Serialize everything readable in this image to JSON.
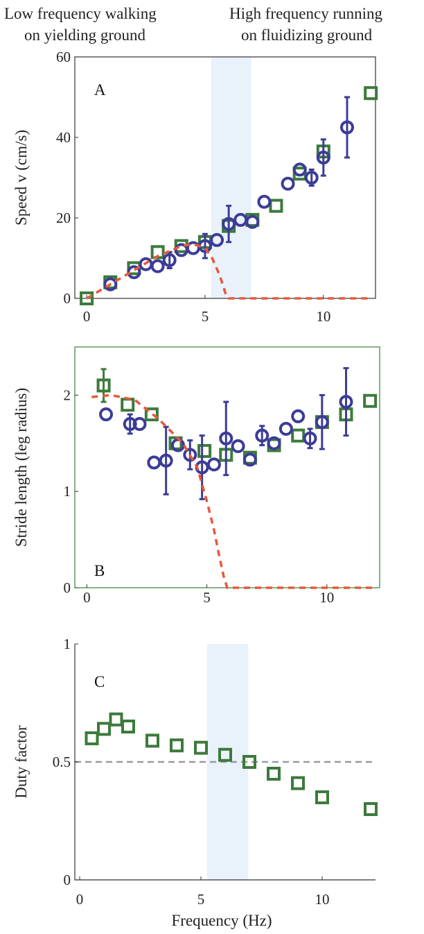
{
  "header": {
    "left_line1": "Low frequency walking",
    "left_line2": "on yielding ground",
    "right_line1": "High frequency running",
    "right_line2": "on fluidizing ground"
  },
  "xlabel": "Frequency (Hz)",
  "colors": {
    "square": "#3c7a3c",
    "circle": "#3c3c96",
    "model": "#e8583a",
    "band": "#e9f2fb",
    "refline": "#9a9a9a",
    "axis": "#333333"
  },
  "chart_data": [
    {
      "type": "scatter",
      "panel_label": "A",
      "ylabel": "Speed v (cm/s)",
      "xlim": [
        -0.5,
        12.2
      ],
      "ylim": [
        0,
        60
      ],
      "xticks": [
        "0",
        "5",
        "10"
      ],
      "yticks": [
        "0",
        "20",
        "40",
        "60"
      ],
      "shaded_band": [
        5.25,
        6.95
      ],
      "series": [
        {
          "marker": "square",
          "x": [
            0,
            1,
            2,
            3,
            4,
            5,
            6,
            7,
            8,
            9,
            10,
            12
          ],
          "y": [
            0,
            4,
            7.5,
            11.5,
            13,
            14,
            18,
            19.5,
            23,
            31,
            36.5,
            51
          ]
        },
        {
          "marker": "circle",
          "x": [
            1,
            2,
            2.5,
            3,
            3.5,
            4,
            4.5,
            5,
            5.5,
            6,
            6.5,
            7,
            7.5,
            8.5,
            9,
            9.5,
            10,
            11
          ],
          "y": [
            3.5,
            6.5,
            8.5,
            8,
            9.5,
            12,
            12.5,
            13,
            14.5,
            18.5,
            19.5,
            19,
            24,
            28.5,
            32,
            30,
            35,
            42.5
          ],
          "err": [
            0,
            0,
            0,
            0,
            2,
            0,
            0,
            3,
            0,
            4.5,
            0,
            0,
            0,
            0,
            0,
            2,
            4.5,
            7.5
          ]
        },
        {
          "marker": "dashed-line",
          "x": [
            0,
            1,
            2,
            3,
            4,
            4.5,
            5,
            5.3,
            5.6,
            5.8,
            5.9,
            6,
            12
          ],
          "y": [
            0,
            3.5,
            7,
            10.5,
            13,
            13.5,
            12.5,
            10,
            6,
            2.5,
            0.5,
            0,
            0
          ]
        }
      ]
    },
    {
      "type": "scatter",
      "panel_label": "B",
      "ylabel": "Stride length (leg radius)",
      "xlim": [
        -0.5,
        12.2
      ],
      "ylim": [
        0,
        2.5
      ],
      "xticks": [
        "0",
        "5",
        "10"
      ],
      "yticks": [
        "0",
        "1",
        "2"
      ],
      "series": [
        {
          "marker": "square",
          "x": [
            0.7,
            1.7,
            2.7,
            3.7,
            4.9,
            5.8,
            6.8,
            7.8,
            8.8,
            9.8,
            10.8,
            11.8
          ],
          "y": [
            2.1,
            1.9,
            1.8,
            1.5,
            1.42,
            1.38,
            1.35,
            1.48,
            1.58,
            1.72,
            1.8,
            1.94
          ],
          "err": [
            0.17,
            0,
            0,
            0,
            0,
            0,
            0,
            0,
            0,
            0,
            0,
            0
          ]
        },
        {
          "marker": "circle",
          "x": [
            0.8,
            1.8,
            2.2,
            2.8,
            3.3,
            3.8,
            4.3,
            4.8,
            5.3,
            5.8,
            6.3,
            6.8,
            7.3,
            7.8,
            8.3,
            8.8,
            9.3,
            9.8,
            10.8
          ],
          "y": [
            1.8,
            1.7,
            1.7,
            1.3,
            1.32,
            1.48,
            1.38,
            1.25,
            1.28,
            1.55,
            1.47,
            1.33,
            1.58,
            1.5,
            1.65,
            1.78,
            1.55,
            1.72,
            1.93
          ],
          "err": [
            0,
            0.1,
            0,
            0,
            0.35,
            0,
            0.15,
            0.33,
            0,
            0.38,
            0,
            0,
            0.1,
            0,
            0,
            0,
            0.1,
            0.28,
            0.35
          ]
        },
        {
          "marker": "dashed-line",
          "x": [
            0.2,
            1,
            2,
            3,
            4,
            4.6,
            5,
            5.3,
            5.5,
            5.7,
            5.85,
            12
          ],
          "y": [
            1.98,
            2.0,
            1.95,
            1.75,
            1.5,
            1.25,
            0.9,
            0.6,
            0.35,
            0.12,
            0,
            0
          ]
        }
      ]
    },
    {
      "type": "scatter",
      "panel_label": "C",
      "ylabel": "Duty factor",
      "xlim": [
        -0.2,
        12.2
      ],
      "ylim": [
        0,
        1
      ],
      "xticks": [
        "0",
        "5",
        "10"
      ],
      "yticks": [
        "0",
        "0.5",
        "1"
      ],
      "shaded_band": [
        5.25,
        6.95
      ],
      "reference_line": 0.5,
      "series": [
        {
          "marker": "square",
          "x": [
            0.5,
            1,
            1.5,
            2,
            3,
            4,
            5,
            6,
            7,
            8,
            9,
            10,
            12
          ],
          "y": [
            0.6,
            0.64,
            0.68,
            0.65,
            0.59,
            0.57,
            0.56,
            0.53,
            0.5,
            0.45,
            0.41,
            0.35,
            0.3
          ]
        }
      ]
    }
  ]
}
